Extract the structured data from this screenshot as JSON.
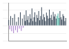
{
  "chart_data": {
    "type": "bar",
    "categories": [
      null,
      null,
      null,
      null,
      null,
      null,
      null,
      null,
      null,
      null,
      null,
      null,
      null,
      null,
      null,
      null,
      null,
      null,
      null,
      null,
      null,
      null,
      null,
      null,
      null,
      null,
      null,
      null,
      null,
      null,
      null,
      null,
      null,
      null,
      null,
      null,
      null,
      null,
      null,
      null,
      null,
      null,
      null,
      null,
      null,
      null,
      null,
      null,
      null,
      null,
      null,
      null,
      null,
      null,
      null,
      null,
      null,
      null,
      null,
      null
    ],
    "values": [
      15,
      -10,
      25,
      -15,
      20,
      -20,
      30,
      -12,
      10,
      -18,
      22,
      -8,
      35,
      -14,
      18,
      -6,
      28,
      12,
      40,
      15,
      25,
      8,
      30,
      18,
      45,
      12,
      22,
      35,
      10,
      28,
      20,
      38,
      14,
      25,
      48,
      16,
      30,
      22,
      12,
      34,
      26,
      18,
      42,
      20,
      28,
      15,
      36,
      24,
      30,
      18,
      26,
      32,
      20,
      38,
      22,
      16,
      30,
      25,
      12,
      20
    ],
    "colors": [
      "#3b4a5a",
      "#a77bca",
      "#3b4a5a",
      "#a77bca",
      "#3b4a5a",
      "#a77bca",
      "#3b4a5a",
      "#a77bca",
      "#3b4a5a",
      "#a77bca",
      "#3b4a5a",
      "#a77bca",
      "#3b4a5a",
      "#a77bca",
      "#3b4a5a",
      "#a77bca",
      "#3b4a5a",
      "#3b4a5a",
      "#3b4a5a",
      "#3b4a5a",
      "#3b4a5a",
      "#3b4a5a",
      "#3b4a5a",
      "#3b4a5a",
      "#3b4a5a",
      "#3b4a5a",
      "#3b4a5a",
      "#3b4a5a",
      "#3b4a5a",
      "#3b4a5a",
      "#3b4a5a",
      "#3b4a5a",
      "#3b4a5a",
      "#3b4a5a",
      "#3b4a5a",
      "#3b4a5a",
      "#3b4a5a",
      "#3b4a5a",
      "#3b4a5a",
      "#3b4a5a",
      "#3b4a5a",
      "#3b4a5a",
      "#3b4a5a",
      "#3b4a5a",
      "#3b4a5a",
      "#3b4a5a",
      "#3b4a5a",
      "#3b4a5a",
      "#3b4a5a",
      "#3b4a5a",
      "#4fb5a5",
      "#4fb5a5",
      "#4fb5a5",
      "#3b4a5a",
      "#3b4a5a",
      "#3b4a5a",
      "#3b4a5a",
      "#3b4a5a",
      "#3b4a5a",
      "#3b4a5a"
    ],
    "ylim": [
      -40,
      60
    ],
    "yticks": [
      -40,
      -20,
      0,
      20,
      40,
      60
    ],
    "grid": true,
    "tick_labels": false
  }
}
